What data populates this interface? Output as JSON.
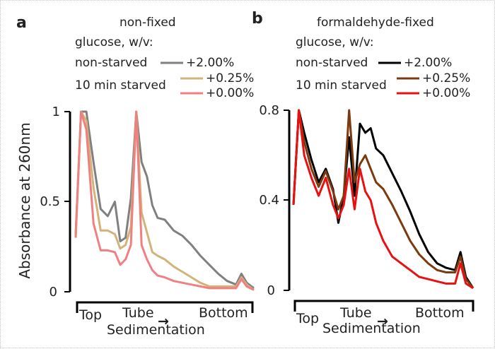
{
  "chart_data": [
    {
      "type": "line",
      "panel_label": "a",
      "title": "non-fixed",
      "legend_header": "glucose, w/v:",
      "legend_groups": [
        "non-starved",
        "10 min starved"
      ],
      "ylabel": "Absorbance at 260nm",
      "xlabels": [
        "Top",
        "Tube",
        "Bottom"
      ],
      "xlabel": "Sedimentation",
      "ylim": [
        0,
        1
      ],
      "yticks": [
        "0",
        "0.5",
        "1"
      ],
      "x": [
        0,
        0.03,
        0.06,
        0.1,
        0.14,
        0.18,
        0.22,
        0.25,
        0.28,
        0.31,
        0.34,
        0.37,
        0.4,
        0.43,
        0.46,
        0.5,
        0.55,
        0.6,
        0.65,
        0.7,
        0.75,
        0.8,
        0.85,
        0.9,
        0.93,
        0.96,
        1
      ],
      "series": [
        {
          "name": "+2.00%",
          "color": "#808080",
          "values": [
            0.32,
            1.0,
            1.0,
            0.72,
            0.46,
            0.42,
            0.5,
            0.28,
            0.3,
            0.52,
            1.0,
            0.72,
            0.64,
            0.48,
            0.41,
            0.4,
            0.34,
            0.31,
            0.26,
            0.2,
            0.15,
            0.1,
            0.06,
            0.04,
            0.1,
            0.05,
            0.02
          ]
        },
        {
          "name": "+0.25%",
          "color": "#d2b47a",
          "values": [
            0.3,
            1.0,
            0.95,
            0.58,
            0.34,
            0.34,
            0.32,
            0.24,
            0.26,
            0.36,
            1.0,
            0.44,
            0.33,
            0.22,
            0.2,
            0.18,
            0.14,
            0.11,
            0.08,
            0.05,
            0.03,
            0.03,
            0.03,
            0.03,
            0.08,
            0.04,
            0.01
          ]
        },
        {
          "name": "+0.00%",
          "color": "#f08080",
          "values": [
            0.3,
            1.0,
            0.9,
            0.38,
            0.23,
            0.23,
            0.22,
            0.15,
            0.18,
            0.26,
            1.0,
            0.26,
            0.18,
            0.12,
            0.09,
            0.08,
            0.06,
            0.05,
            0.04,
            0.03,
            0.02,
            0.02,
            0.02,
            0.02,
            0.07,
            0.03,
            0.01
          ]
        }
      ]
    },
    {
      "type": "line",
      "panel_label": "b",
      "title": "formaldehyde-fixed",
      "legend_header": "glucose, w/v:",
      "legend_groups": [
        "non-starved",
        "10 min starved"
      ],
      "xlabels": [
        "Top",
        "Tube",
        "Bottom"
      ],
      "xlabel": "Sedimentation",
      "ylim": [
        0,
        0.8
      ],
      "yticks": [
        "0",
        "0.4",
        "0.8"
      ],
      "x": [
        0,
        0.03,
        0.06,
        0.1,
        0.14,
        0.18,
        0.22,
        0.25,
        0.28,
        0.31,
        0.34,
        0.37,
        0.4,
        0.43,
        0.46,
        0.5,
        0.55,
        0.6,
        0.65,
        0.7,
        0.75,
        0.8,
        0.85,
        0.9,
        0.93,
        0.96,
        1
      ],
      "series": [
        {
          "name": "+2.00%",
          "color": "#000000",
          "values": [
            0.38,
            0.8,
            0.7,
            0.58,
            0.48,
            0.54,
            0.45,
            0.3,
            0.42,
            0.68,
            0.42,
            0.74,
            0.7,
            0.72,
            0.63,
            0.6,
            0.52,
            0.44,
            0.35,
            0.25,
            0.17,
            0.12,
            0.1,
            0.09,
            0.17,
            0.06,
            0.01
          ]
        },
        {
          "name": "+0.25%",
          "color": "#7b3a10",
          "values": [
            0.38,
            0.8,
            0.66,
            0.54,
            0.46,
            0.53,
            0.44,
            0.36,
            0.42,
            0.8,
            0.48,
            0.56,
            0.6,
            0.54,
            0.48,
            0.45,
            0.38,
            0.3,
            0.22,
            0.16,
            0.12,
            0.09,
            0.08,
            0.08,
            0.15,
            0.05,
            0.01
          ]
        },
        {
          "name": "+0.00%",
          "color": "#e81010",
          "values": [
            0.38,
            0.8,
            0.6,
            0.5,
            0.42,
            0.5,
            0.38,
            0.32,
            0.38,
            0.54,
            0.36,
            0.54,
            0.44,
            0.4,
            0.3,
            0.22,
            0.15,
            0.12,
            0.09,
            0.06,
            0.05,
            0.04,
            0.03,
            0.03,
            0.12,
            0.03,
            0.01
          ]
        }
      ]
    }
  ],
  "sedimentation_arrow": "→"
}
